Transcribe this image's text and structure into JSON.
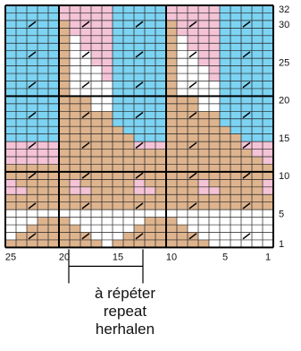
{
  "chart_title": "",
  "grid": {
    "columns": 25,
    "rows": 32,
    "palette": {
      "0": "#ffffff",
      "1": "#7dd3f2",
      "2": "#f4c3d6",
      "3": "#deb48e"
    },
    "pattern": [
      "1111122222111112222211111",
      "1111122222111112222211111",
      "1111132222111113222211111",
      "1111132222111113222211111",
      "1111130222111113022211111",
      "1111130222111113022211111",
      "1111130022111113002211111",
      "1111130022111113002211111",
      "1111130002111113000211111",
      "1111130002111113000211111",
      "1111130000111113000011111",
      "1111130000111113000011111",
      "1111133300111113330011111",
      "1111133300111113330011111",
      "1111133333111113333311111",
      "1111133333111113333311111",
      "1111133333311113333331111",
      "1111133333331113333333111",
      "2222233333332223333333222",
      "2222233333333333333333322",
      "2222233333333333333333332",
      "3333333333333333333333333",
      "3333333333333333333333333",
      "2333332333332333332333332",
      "2233332233332233332233332",
      "3333333333333333333333333",
      "3333333333333333333333333",
      "0000000000000000000000000",
      "0003330000000333000000000",
      "0033333000003333300000000",
      "0333333300033333330000000",
      "3333333330333333333000000"
    ],
    "slash_columns": [
      2,
      7,
      12,
      17,
      22
    ]
  },
  "row_labels": [
    "32",
    "30",
    "25",
    "20",
    "15",
    "10",
    "5",
    "1"
  ],
  "column_labels": [
    "25",
    "20",
    "15",
    "10",
    "5",
    "1"
  ],
  "repeat_caption": [
    "à répéter",
    "repeat",
    "herhalen"
  ]
}
